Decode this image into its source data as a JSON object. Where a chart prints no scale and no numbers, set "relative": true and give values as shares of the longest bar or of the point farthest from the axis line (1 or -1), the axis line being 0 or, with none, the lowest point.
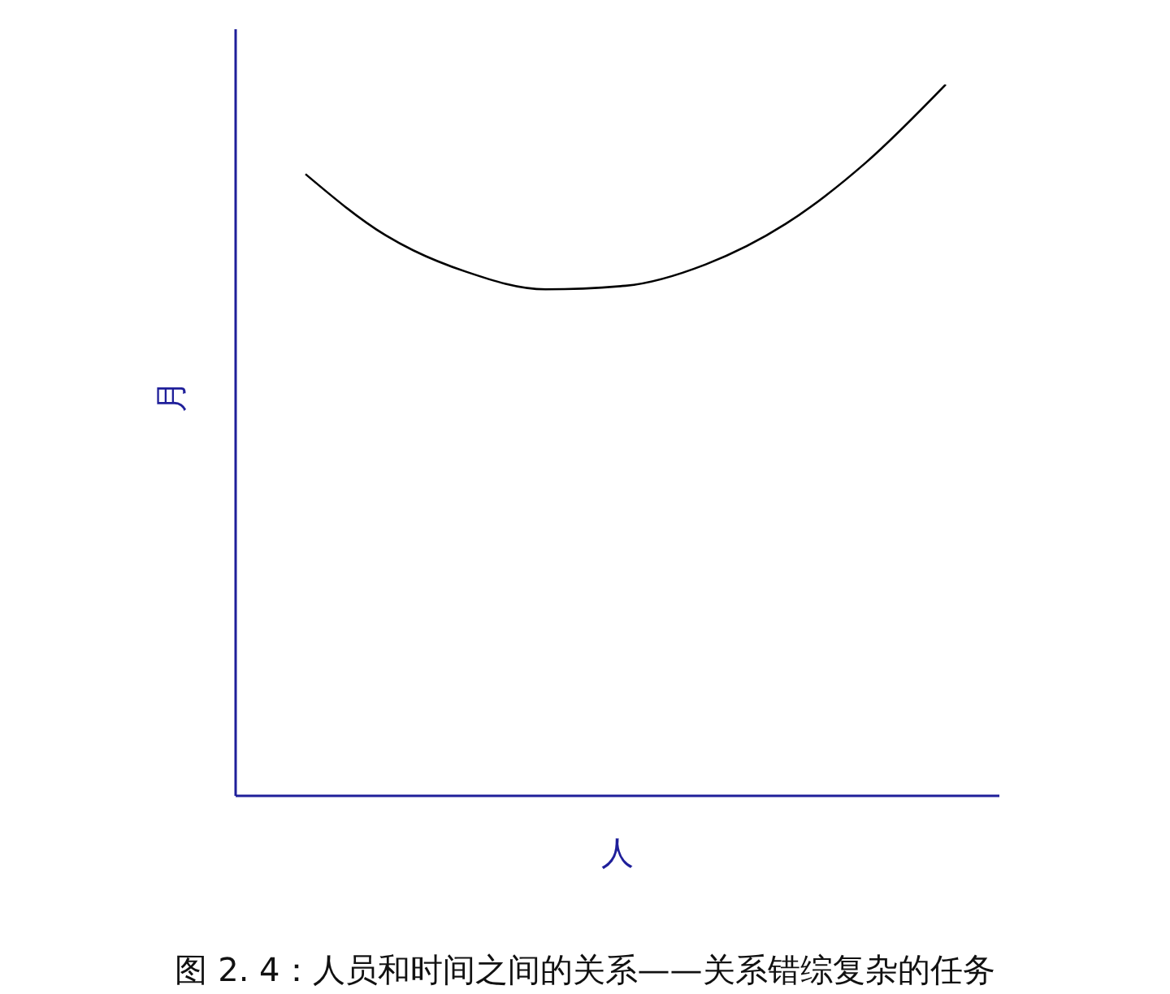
{
  "chart_data": {
    "type": "line",
    "title": "图 2. 4：人员和时间之间的关系——关系错综复杂的任务",
    "xlabel": "人",
    "ylabel": "月",
    "relative": true,
    "marker": "none",
    "categories": [
      null,
      null,
      null,
      null,
      null,
      null,
      null,
      null,
      null
    ],
    "series": [
      {
        "color": "#000000",
        "values": [
          0.874,
          0.788,
          0.737,
          0.712,
          0.717,
          0.747,
          0.804,
          0.89,
          1.0
        ]
      }
    ]
  }
}
